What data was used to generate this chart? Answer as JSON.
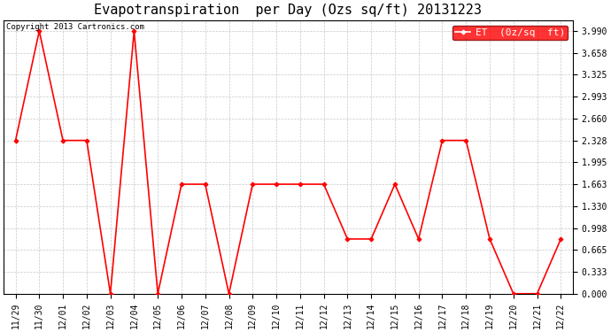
{
  "title": "Evapotranspiration  per Day (Ozs sq/ft) 20131223",
  "copyright": "Copyright 2013 Cartronics.com",
  "legend_label": "ET  (0z/sq  ft)",
  "x_labels": [
    "11/29",
    "11/30",
    "12/01",
    "12/02",
    "12/03",
    "12/04",
    "12/05",
    "12/06",
    "12/07",
    "12/08",
    "12/09",
    "12/10",
    "12/11",
    "12/12",
    "12/13",
    "12/14",
    "12/15",
    "12/16",
    "12/17",
    "12/18",
    "12/19",
    "12/20",
    "12/21",
    "12/22"
  ],
  "y_values": [
    2.328,
    3.99,
    2.328,
    2.328,
    0.0,
    3.99,
    0.0,
    1.663,
    1.663,
    0.0,
    1.663,
    1.663,
    1.663,
    1.663,
    0.831,
    0.831,
    1.663,
    0.831,
    2.328,
    2.328,
    0.831,
    0.0,
    0.0,
    0.831
  ],
  "line_color": "#ff0000",
  "marker": "D",
  "marker_size": 2.5,
  "marker_edge_width": 0.8,
  "line_width": 1.2,
  "background_color": "#ffffff",
  "plot_bg_color": "#ffffff",
  "grid_color": "#c8c8c8",
  "yticks": [
    0.0,
    0.333,
    0.665,
    0.998,
    1.33,
    1.663,
    1.995,
    2.328,
    2.66,
    2.993,
    3.325,
    3.658,
    3.99
  ],
  "ylim": [
    0.0,
    4.15
  ],
  "title_fontsize": 11,
  "tick_fontsize": 7,
  "legend_fontsize": 8,
  "copyright_fontsize": 6.5
}
